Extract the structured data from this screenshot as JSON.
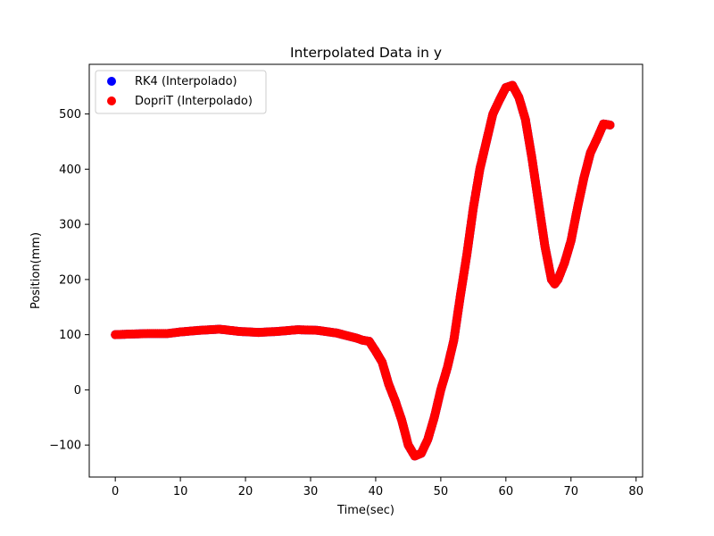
{
  "chart_data": {
    "type": "scatter",
    "title": "Interpolated Data in y",
    "xlabel": "Time(sec)",
    "ylabel": "Position(mm)",
    "xlim": [
      -4,
      81
    ],
    "ylim": [
      -158,
      590
    ],
    "xticks": [
      0,
      10,
      20,
      30,
      40,
      50,
      60,
      70,
      80
    ],
    "yticks": [
      -100,
      0,
      100,
      200,
      300,
      400,
      500
    ],
    "grid": false,
    "legend_position": "top-left",
    "series": [
      {
        "name": "RK4 (Interpolado)",
        "color": "#0000ff",
        "points": [
          [
            0,
            100
          ],
          [
            2,
            101
          ],
          [
            5,
            102
          ],
          [
            8,
            102
          ],
          [
            10,
            105
          ],
          [
            13,
            108
          ],
          [
            16,
            110
          ],
          [
            19,
            106
          ],
          [
            22,
            104
          ],
          [
            25,
            106
          ],
          [
            28,
            109
          ],
          [
            31,
            108
          ],
          [
            34,
            103
          ],
          [
            37,
            94
          ],
          [
            38,
            90
          ],
          [
            39,
            88
          ],
          [
            40,
            70
          ],
          [
            41,
            50
          ],
          [
            42,
            10
          ],
          [
            43,
            -20
          ],
          [
            44,
            -55
          ],
          [
            45,
            -100
          ],
          [
            46,
            -120
          ],
          [
            47,
            -115
          ],
          [
            48,
            -90
          ],
          [
            49,
            -50
          ],
          [
            50,
            0
          ],
          [
            51,
            40
          ],
          [
            52,
            90
          ],
          [
            53,
            170
          ],
          [
            54,
            245
          ],
          [
            55,
            330
          ],
          [
            56,
            400
          ],
          [
            57,
            450
          ],
          [
            58,
            500
          ],
          [
            59,
            525
          ],
          [
            60,
            548
          ],
          [
            61,
            552
          ],
          [
            62,
            530
          ],
          [
            63,
            490
          ],
          [
            64,
            420
          ],
          [
            65,
            340
          ],
          [
            66,
            260
          ],
          [
            67,
            200
          ],
          [
            67.5,
            192
          ],
          [
            68,
            200
          ],
          [
            69,
            230
          ],
          [
            70,
            270
          ],
          [
            71,
            330
          ],
          [
            72,
            385
          ],
          [
            73,
            430
          ],
          [
            74,
            455
          ],
          [
            75,
            482
          ],
          [
            76,
            480
          ]
        ]
      },
      {
        "name": "DopriT (Interpolado)",
        "color": "#ff0000",
        "points": [
          [
            0,
            100
          ],
          [
            2,
            101
          ],
          [
            5,
            102
          ],
          [
            8,
            102
          ],
          [
            10,
            105
          ],
          [
            13,
            108
          ],
          [
            16,
            110
          ],
          [
            19,
            106
          ],
          [
            22,
            104
          ],
          [
            25,
            106
          ],
          [
            28,
            109
          ],
          [
            31,
            108
          ],
          [
            34,
            103
          ],
          [
            37,
            94
          ],
          [
            38,
            90
          ],
          [
            39,
            88
          ],
          [
            40,
            70
          ],
          [
            41,
            50
          ],
          [
            42,
            10
          ],
          [
            43,
            -20
          ],
          [
            44,
            -55
          ],
          [
            45,
            -100
          ],
          [
            46,
            -120
          ],
          [
            47,
            -115
          ],
          [
            48,
            -90
          ],
          [
            49,
            -50
          ],
          [
            50,
            0
          ],
          [
            51,
            40
          ],
          [
            52,
            90
          ],
          [
            53,
            170
          ],
          [
            54,
            245
          ],
          [
            55,
            330
          ],
          [
            56,
            400
          ],
          [
            57,
            450
          ],
          [
            58,
            500
          ],
          [
            59,
            525
          ],
          [
            60,
            548
          ],
          [
            61,
            552
          ],
          [
            62,
            530
          ],
          [
            63,
            490
          ],
          [
            64,
            420
          ],
          [
            65,
            340
          ],
          [
            66,
            260
          ],
          [
            67,
            200
          ],
          [
            67.5,
            192
          ],
          [
            68,
            200
          ],
          [
            69,
            230
          ],
          [
            70,
            270
          ],
          [
            71,
            330
          ],
          [
            72,
            385
          ],
          [
            73,
            430
          ],
          [
            74,
            455
          ],
          [
            75,
            482
          ],
          [
            76,
            480
          ]
        ]
      }
    ]
  }
}
